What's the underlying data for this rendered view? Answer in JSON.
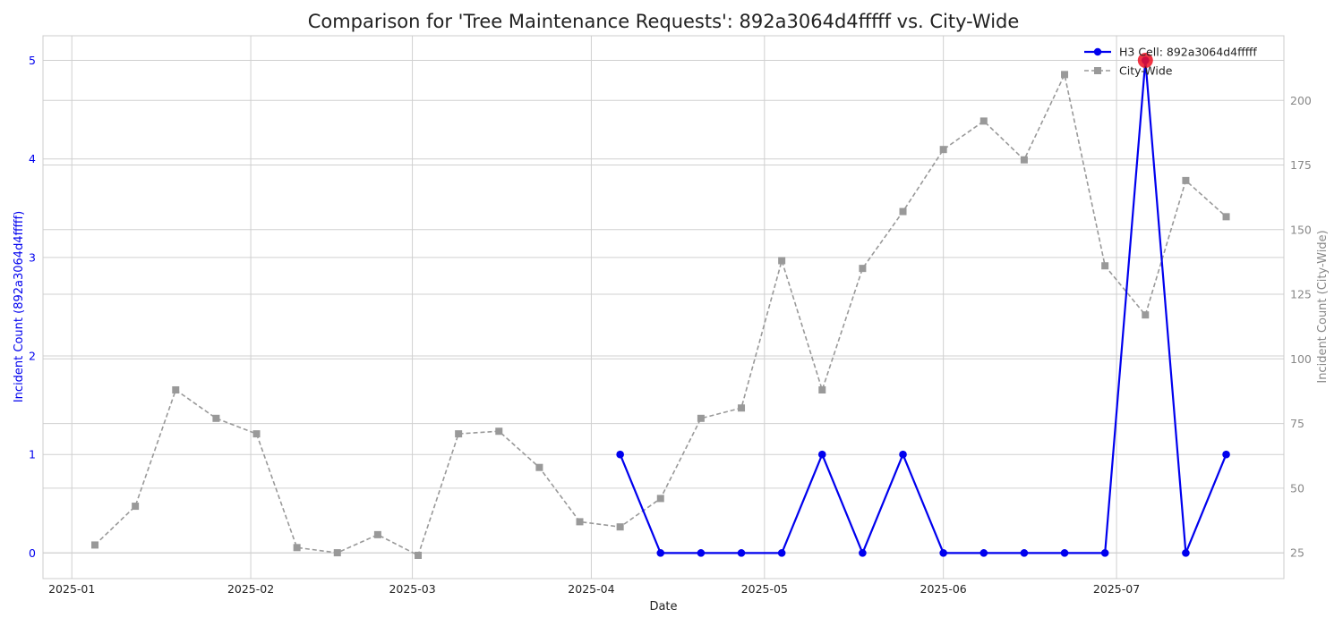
{
  "chart_data": {
    "type": "line",
    "title": "Comparison for 'Tree Maintenance Requests': 892a3064d4fffff vs. City-Wide",
    "xlabel": "Date",
    "ylabel_left": "Incident Count (892a3064d4fffff)",
    "ylabel_right": "Incident Count (City-Wide)",
    "x_range": [
      "2024-12-27",
      "2025-07-30"
    ],
    "x_ticks": [
      {
        "date": "2025-01-01",
        "label": "2025-01"
      },
      {
        "date": "2025-02-01",
        "label": "2025-02"
      },
      {
        "date": "2025-03-01",
        "label": "2025-03"
      },
      {
        "date": "2025-04-01",
        "label": "2025-04"
      },
      {
        "date": "2025-05-01",
        "label": "2025-05"
      },
      {
        "date": "2025-06-01",
        "label": "2025-06"
      },
      {
        "date": "2025-07-01",
        "label": "2025-07"
      }
    ],
    "ylim_left": [
      -0.26,
      5.25
    ],
    "yticks_left": [
      0,
      1,
      2,
      3,
      4,
      5
    ],
    "ylim_right": [
      15,
      225
    ],
    "yticks_right": [
      25,
      50,
      75,
      100,
      125,
      150,
      175,
      200
    ],
    "grid": true,
    "legend_position": "top-right",
    "series": [
      {
        "name": "H3 Cell: 892a3064d4fffff",
        "axis": "left",
        "color": "#0000ee",
        "marker": "circle",
        "line_style": "solid",
        "x": [
          "2025-04-06",
          "2025-04-13",
          "2025-04-20",
          "2025-04-27",
          "2025-05-04",
          "2025-05-11",
          "2025-05-18",
          "2025-05-25",
          "2025-06-01",
          "2025-06-08",
          "2025-06-15",
          "2025-06-22",
          "2025-06-29",
          "2025-07-06",
          "2025-07-13",
          "2025-07-20"
        ],
        "values": [
          1,
          0,
          0,
          0,
          0,
          1,
          0,
          1,
          0,
          0,
          0,
          0,
          0,
          5,
          0,
          1
        ]
      },
      {
        "name": "City-Wide",
        "axis": "right",
        "color": "#999999",
        "marker": "square",
        "line_style": "dashed",
        "x": [
          "2025-01-05",
          "2025-01-12",
          "2025-01-19",
          "2025-01-26",
          "2025-02-02",
          "2025-02-09",
          "2025-02-16",
          "2025-02-23",
          "2025-03-02",
          "2025-03-09",
          "2025-03-16",
          "2025-03-23",
          "2025-03-30",
          "2025-04-06",
          "2025-04-13",
          "2025-04-20",
          "2025-04-27",
          "2025-05-04",
          "2025-05-11",
          "2025-05-18",
          "2025-05-25",
          "2025-06-01",
          "2025-06-08",
          "2025-06-15",
          "2025-06-22",
          "2025-06-29",
          "2025-07-06",
          "2025-07-13",
          "2025-07-20"
        ],
        "values": [
          28,
          43,
          88,
          77,
          71,
          27,
          25,
          32,
          24,
          71,
          72,
          58,
          37,
          35,
          46,
          77,
          81,
          138,
          88,
          135,
          157,
          181,
          192,
          177,
          210,
          136,
          117,
          169,
          155
        ]
      }
    ],
    "highlight": {
      "date": "2025-07-06",
      "value": 5,
      "color": "#ee1122"
    }
  }
}
